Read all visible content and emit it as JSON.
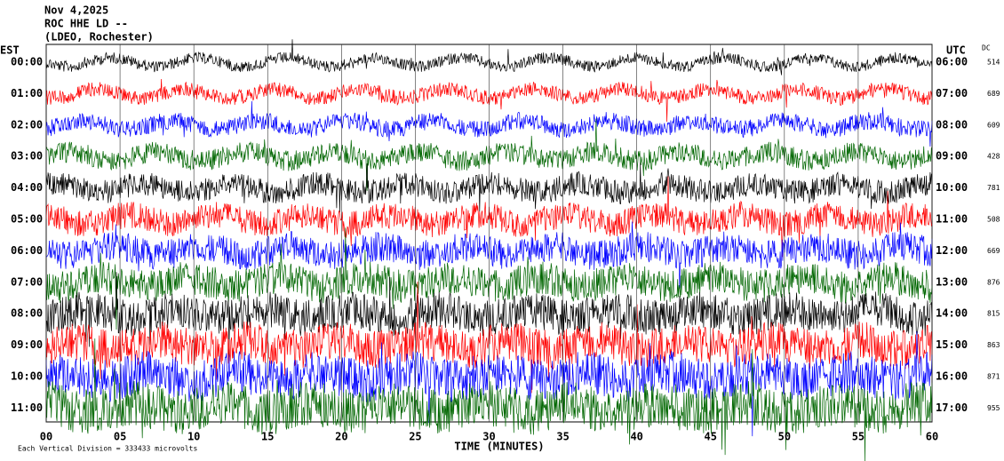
{
  "header": {
    "date": "Nov 4,2025",
    "station": "ROC HHE LD --",
    "location": "(LDEO, Rochester)"
  },
  "left_axis": {
    "label": "EST",
    "ticks": [
      "00:00",
      "01:00",
      "02:00",
      "03:00",
      "04:00",
      "05:00",
      "06:00",
      "07:00",
      "08:00",
      "09:00",
      "10:00",
      "11:00"
    ]
  },
  "right_axis": {
    "label": "UTC",
    "ticks": [
      "06:00",
      "07:00",
      "08:00",
      "09:00",
      "10:00",
      "11:00",
      "12:00",
      "13:00",
      "14:00",
      "15:00",
      "16:00",
      "17:00"
    ]
  },
  "dc": {
    "label": "DC",
    "values": [
      514,
      689,
      609,
      428,
      781,
      508,
      669,
      876,
      815,
      863,
      871,
      955
    ]
  },
  "x_axis": {
    "label": "TIME (MINUTES)",
    "ticks": [
      "00",
      "05",
      "10",
      "15",
      "20",
      "25",
      "30",
      "35",
      "40",
      "45",
      "50",
      "55",
      "60"
    ]
  },
  "footer": "Each Vertical Division = 333433 microvolts",
  "trace_colors": [
    "#000000",
    "#ff0000",
    "#0000ff",
    "#006600"
  ]
}
